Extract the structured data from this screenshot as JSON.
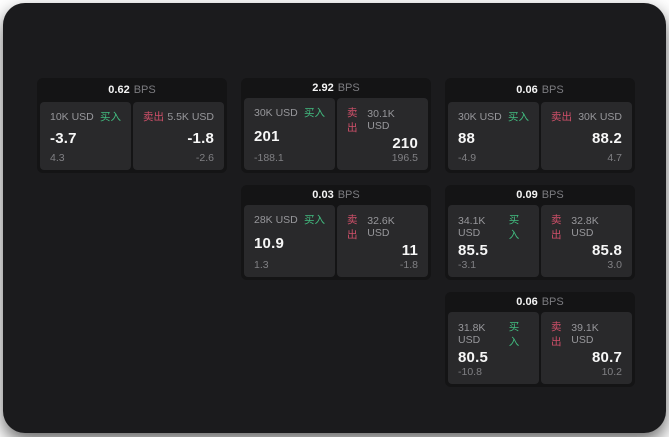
{
  "labels": {
    "unit": "BPS",
    "buy": "买入",
    "sell": "卖出"
  },
  "colors": {
    "page_bg": "#ffffff",
    "panel_bg": "#1b1b1d",
    "card_bg": "#141415",
    "tile_bg": "#29292b",
    "buy_green": "#42bd80",
    "sell_red": "#d0506a",
    "text_primary": "#f7f7f7",
    "text_muted": "#8a8a8e"
  },
  "cards": [
    {
      "bps": "0.62",
      "buy": {
        "amount": "10K USD",
        "value": "-3.7",
        "delta": "4.3"
      },
      "sell": {
        "amount": "5.5K USD",
        "value": "-1.8",
        "delta": "-2.6"
      }
    },
    {
      "bps": "2.92",
      "buy": {
        "amount": "30K USD",
        "value": "201",
        "delta": "-188.1"
      },
      "sell": {
        "amount": "30.1K USD",
        "value": "210",
        "delta": "196.5"
      }
    },
    {
      "bps": "0.06",
      "buy": {
        "amount": "30K USD",
        "value": "88",
        "delta": "-4.9"
      },
      "sell": {
        "amount": "30K USD",
        "value": "88.2",
        "delta": "4.7"
      }
    },
    {
      "bps": "0.03",
      "buy": {
        "amount": "28K USD",
        "value": "10.9",
        "delta": "1.3"
      },
      "sell": {
        "amount": "32.6K USD",
        "value": "11",
        "delta": "-1.8"
      }
    },
    {
      "bps": "0.09",
      "buy": {
        "amount": "34.1K USD",
        "value": "85.5",
        "delta": "-3.1"
      },
      "sell": {
        "amount": "32.8K USD",
        "value": "85.8",
        "delta": "3.0"
      }
    },
    {
      "bps": "0.06",
      "buy": {
        "amount": "31.8K USD",
        "value": "80.5",
        "delta": "-10.8"
      },
      "sell": {
        "amount": "39.1K USD",
        "value": "80.7",
        "delta": "10.2"
      }
    }
  ]
}
